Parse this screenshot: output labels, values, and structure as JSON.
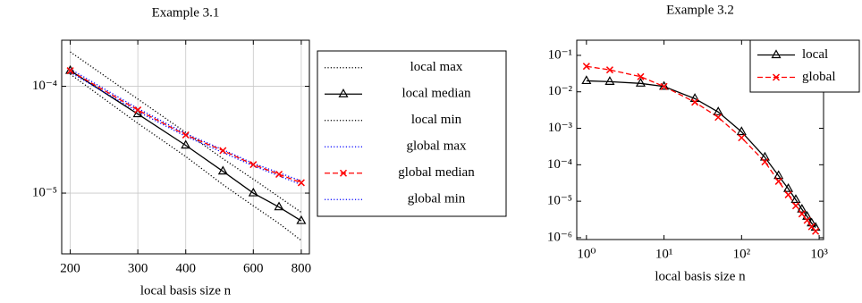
{
  "chart_data": [
    {
      "type": "line",
      "title": "Example 3.1",
      "xlabel": "local basis size n",
      "xscale": "log",
      "yscale": "log",
      "grid": true,
      "legend": "outside right",
      "x": [
        200,
        300,
        400,
        500,
        600,
        700,
        800
      ],
      "xlim": [
        190,
        840
      ],
      "xticks": [
        200,
        300,
        400,
        600,
        800
      ],
      "ylim": [
        2.7e-06,
        0.00027
      ],
      "yticks": [
        {
          "value": 0.0001,
          "label": "10⁻⁴"
        },
        {
          "value": 1e-05,
          "label": "10⁻⁵"
        }
      ],
      "series": [
        {
          "name": "local max",
          "color": "#000000",
          "style": "dotted",
          "values": [
            0.00021,
            7.6e-05,
            3.7e-05,
            2.1e-05,
            1.35e-05,
            9.2e-06,
            6.6e-06
          ]
        },
        {
          "name": "local median",
          "color": "#000000",
          "style": "solid",
          "marker": "triangle",
          "values": [
            0.00014,
            5.5e-05,
            2.8e-05,
            1.6e-05,
            1e-05,
            7.4e-06,
            5.5e-06
          ]
        },
        {
          "name": "local min",
          "color": "#000000",
          "style": "dotted",
          "values": [
            0.00013,
            4.5e-05,
            2.2e-05,
            1.2e-05,
            7.6e-06,
            5.2e-06,
            3.6e-06
          ]
        },
        {
          "name": "global max",
          "color": "#0000ff",
          "style": "dotted",
          "values": [
            0.000145,
            6.2e-05,
            3.6e-05,
            2.55e-05,
            1.9e-05,
            1.55e-05,
            1.3e-05
          ]
        },
        {
          "name": "global median",
          "color": "#ff0000",
          "style": "dashed",
          "marker": "x",
          "values": [
            0.00014,
            6e-05,
            3.5e-05,
            2.5e-05,
            1.85e-05,
            1.5e-05,
            1.25e-05
          ]
        },
        {
          "name": "global min",
          "color": "#0000ff",
          "style": "dotted",
          "values": [
            0.000135,
            5.8e-05,
            3.4e-05,
            2.4e-05,
            1.8e-05,
            1.45e-05,
            1.2e-05
          ]
        }
      ]
    },
    {
      "type": "line",
      "title": "Example 3.2",
      "xlabel": "local basis size n",
      "xscale": "log",
      "yscale": "log",
      "grid": false,
      "legend": "upper right",
      "x": [
        1,
        2,
        5,
        10,
        25,
        50,
        100,
        200,
        300,
        400,
        500,
        600,
        700,
        800,
        900
      ],
      "xlim": [
        0.75,
        1140
      ],
      "xticks": [
        {
          "value": 1,
          "label": "10⁰"
        },
        {
          "value": 10,
          "label": "10¹"
        },
        {
          "value": 100,
          "label": "10²"
        },
        {
          "value": 1000,
          "label": "10³"
        }
      ],
      "ylim": [
        8.9e-07,
        0.26
      ],
      "yticks": [
        {
          "value": 0.1,
          "label": "10⁻¹"
        },
        {
          "value": 0.01,
          "label": "10⁻²"
        },
        {
          "value": 0.001,
          "label": "10⁻³"
        },
        {
          "value": 0.0001,
          "label": "10⁻⁴"
        },
        {
          "value": 1e-05,
          "label": "10⁻⁵"
        },
        {
          "value": 1e-06,
          "label": "10⁻⁶"
        }
      ],
      "series": [
        {
          "name": "local",
          "color": "#000000",
          "style": "solid",
          "marker": "triangle",
          "values": [
            0.02,
            0.019,
            0.017,
            0.014,
            0.0065,
            0.0028,
            0.0008,
            0.00016,
            5e-05,
            2.2e-05,
            1.1e-05,
            6e-06,
            3.8e-06,
            2.5e-06,
            1.9e-06
          ]
        },
        {
          "name": "global",
          "color": "#ff0000",
          "style": "dashed",
          "marker": "x",
          "values": [
            0.05,
            0.04,
            0.026,
            0.014,
            0.0052,
            0.002,
            0.00055,
            0.00012,
            3.5e-05,
            1.5e-05,
            7.5e-06,
            4.5e-06,
            3e-06,
            2e-06,
            1.5e-06
          ]
        }
      ]
    }
  ]
}
